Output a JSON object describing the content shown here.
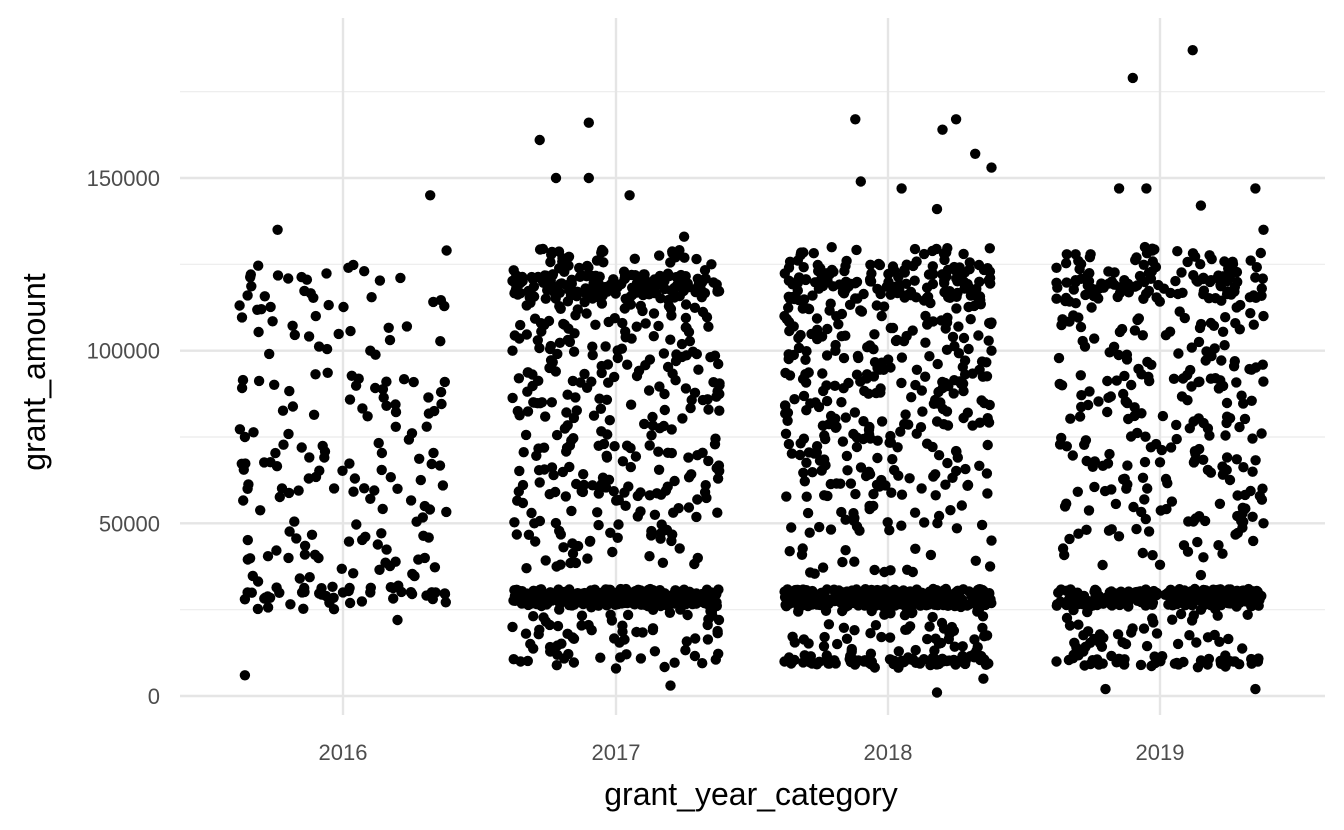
{
  "chart_data": {
    "type": "scatter",
    "title": "",
    "xlabel": "grant_year_category",
    "ylabel": "grant_amount",
    "categories": [
      "2016",
      "2017",
      "2018",
      "2019"
    ],
    "ylim": [
      -5000,
      195000
    ],
    "y_ticks": [
      0,
      50000,
      100000,
      150000
    ],
    "y_tick_labels": [
      "0",
      "50000",
      "100000",
      "150000"
    ],
    "grid": true,
    "legend": "none",
    "jitter_width": 0.8,
    "point_color": "#000000",
    "series": [
      {
        "category": "2016",
        "point_count": 200,
        "sample_points": [
          [
            -0.35,
            116000
          ],
          [
            -0.3,
            112000
          ],
          [
            -0.24,
            135000
          ],
          [
            -0.1,
            110000
          ],
          [
            0.02,
            124000
          ],
          [
            0.1,
            100000
          ],
          [
            0.32,
            145000
          ],
          [
            0.38,
            129000
          ],
          [
            0.36,
            88000
          ],
          [
            -0.36,
            75000
          ],
          [
            -0.35,
            60000
          ],
          [
            -0.36,
            28000
          ],
          [
            -0.35,
            30000
          ],
          [
            -0.36,
            6000
          ],
          [
            -0.2,
            40000
          ],
          [
            -0.15,
            30000
          ],
          [
            -0.05,
            27000
          ],
          [
            0.0,
            30000
          ],
          [
            0.1,
            30000
          ],
          [
            0.2,
            22000
          ],
          [
            0.25,
            30000
          ],
          [
            0.3,
            40000
          ],
          [
            0.34,
            30000
          ],
          [
            0.2,
            60000
          ],
          [
            0.3,
            55000
          ]
        ]
      },
      {
        "category": "2017",
        "point_count": 820,
        "sample_points": [
          [
            -0.28,
            161000
          ],
          [
            -0.22,
            150000
          ],
          [
            -0.1,
            150000
          ],
          [
            -0.1,
            166000
          ],
          [
            0.05,
            145000
          ],
          [
            0.25,
            133000
          ],
          [
            0.35,
            125000
          ],
          [
            -0.38,
            100000
          ],
          [
            0.38,
            90000
          ],
          [
            -0.38,
            20000
          ],
          [
            -0.35,
            10000
          ],
          [
            0.2,
            3000
          ],
          [
            0.0,
            8000
          ],
          [
            0.3,
            40000
          ],
          [
            -0.3,
            50000
          ]
        ],
        "dense_bands": [
          30000,
          28000,
          120000
        ]
      },
      {
        "category": "2018",
        "point_count": 900,
        "sample_points": [
          [
            -0.1,
            149000
          ],
          [
            -0.12,
            167000
          ],
          [
            0.05,
            147000
          ],
          [
            0.2,
            164000
          ],
          [
            0.25,
            167000
          ],
          [
            0.32,
            157000
          ],
          [
            0.38,
            153000
          ],
          [
            0.18,
            141000
          ],
          [
            -0.38,
            110000
          ],
          [
            0.38,
            100000
          ],
          [
            0.18,
            1000
          ],
          [
            0.35,
            5000
          ],
          [
            -0.38,
            10000
          ],
          [
            0.2,
            10000
          ],
          [
            0.38,
            45000
          ]
        ],
        "dense_bands": [
          30000,
          28000,
          10000,
          120000
        ]
      },
      {
        "category": "2019",
        "point_count": 650,
        "sample_points": [
          [
            -0.15,
            147000
          ],
          [
            -0.1,
            179000
          ],
          [
            0.12,
            187000
          ],
          [
            0.15,
            142000
          ],
          [
            -0.05,
            147000
          ],
          [
            0.35,
            147000
          ],
          [
            0.38,
            135000
          ],
          [
            -0.38,
            124000
          ],
          [
            0.38,
            110000
          ],
          [
            -0.38,
            10000
          ],
          [
            0.35,
            2000
          ],
          [
            0.38,
            50000
          ],
          [
            0.15,
            35000
          ],
          [
            -0.2,
            2000
          ],
          [
            0.0,
            38000
          ]
        ],
        "dense_bands": [
          30000,
          10000,
          120000
        ]
      }
    ]
  }
}
